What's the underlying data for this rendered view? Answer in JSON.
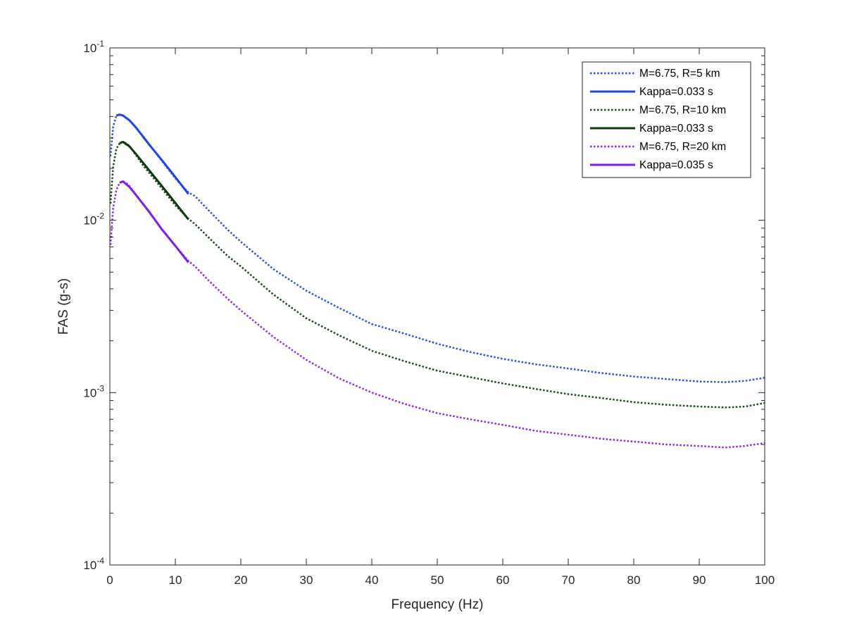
{
  "chart_data": {
    "type": "line",
    "title": "",
    "xlabel": "Frequency (Hz)",
    "ylabel": "FAS (g-s)",
    "xlim": [
      0,
      100
    ],
    "ylim": [
      0.0001,
      0.1
    ],
    "yscale": "log",
    "grid": false,
    "legend_position": "top-right",
    "x_ticks": [
      0,
      10,
      20,
      30,
      40,
      50,
      60,
      70,
      80,
      90,
      100
    ],
    "x_tick_labels": [
      "0",
      "10",
      "20",
      "30",
      "40",
      "50",
      "60",
      "70",
      "80",
      "90",
      "100"
    ],
    "y_ticks": [
      0.0001,
      0.001,
      0.01,
      0.1
    ],
    "y_tick_labels": [
      {
        "base": "10",
        "exp": "-4"
      },
      {
        "base": "10",
        "exp": "-3"
      },
      {
        "base": "10",
        "exp": "-2"
      },
      {
        "base": "10",
        "exp": "-1"
      }
    ],
    "series": [
      {
        "name": "M=6.75, R=5 km",
        "style": "dotted",
        "color": "#2d4fdc",
        "x": [
          0.1,
          0.5,
          1,
          1.5,
          2,
          3,
          5,
          8,
          10,
          12,
          13,
          15,
          18,
          20,
          25,
          30,
          35,
          40,
          45,
          50,
          55,
          60,
          65,
          70,
          75,
          80,
          85,
          90,
          94,
          97,
          100
        ],
        "y": [
          0.0235,
          0.035,
          0.0405,
          0.041,
          0.0405,
          0.038,
          0.031,
          0.022,
          0.0175,
          0.0145,
          0.0138,
          0.0115,
          0.0088,
          0.0075,
          0.0052,
          0.0039,
          0.0031,
          0.0025,
          0.0022,
          0.00192,
          0.00172,
          0.00157,
          0.00146,
          0.00138,
          0.0013,
          0.00124,
          0.0012,
          0.00116,
          0.00115,
          0.00117,
          0.00122
        ]
      },
      {
        "name": "Kappa=0.033 s",
        "style": "solid",
        "color": "#1f44e6",
        "x": [
          1,
          1.5,
          2,
          3,
          4,
          6,
          8,
          10,
          12
        ],
        "y": [
          0.0405,
          0.041,
          0.0405,
          0.038,
          0.0345,
          0.0275,
          0.0222,
          0.0178,
          0.0142
        ]
      },
      {
        "name": "M=6.75, R=10 km",
        "style": "dotted",
        "color": "#1a4a1a",
        "x": [
          0.1,
          0.5,
          1,
          1.5,
          2,
          2.5,
          3,
          5,
          8,
          10,
          12,
          13,
          15,
          18,
          20,
          25,
          30,
          35,
          40,
          45,
          50,
          55,
          60,
          65,
          70,
          75,
          80,
          85,
          90,
          94,
          97,
          100
        ],
        "y": [
          0.0125,
          0.0205,
          0.026,
          0.028,
          0.0285,
          0.028,
          0.027,
          0.021,
          0.0152,
          0.0122,
          0.0102,
          0.0095,
          0.008,
          0.0062,
          0.0054,
          0.0037,
          0.0027,
          0.00215,
          0.00175,
          0.00152,
          0.00134,
          0.00123,
          0.00113,
          0.00105,
          0.00098,
          0.00093,
          0.00088,
          0.00085,
          0.00083,
          0.00082,
          0.00083,
          0.00087
        ]
      },
      {
        "name": "Kappa=0.033 s",
        "style": "solid",
        "color": "#0d3a0d",
        "x": [
          1.5,
          2,
          3,
          4,
          6,
          8,
          10,
          12
        ],
        "y": [
          0.028,
          0.0285,
          0.0268,
          0.0242,
          0.0195,
          0.0157,
          0.0126,
          0.0101
        ]
      },
      {
        "name": "M=6.75, R=20 km",
        "style": "dotted",
        "color": "#8a2be2",
        "x": [
          0.1,
          0.5,
          1,
          1.5,
          2,
          2.5,
          3,
          5,
          8,
          10,
          12,
          13,
          15,
          18,
          20,
          25,
          30,
          35,
          40,
          45,
          50,
          55,
          60,
          65,
          70,
          75,
          80,
          85,
          90,
          94,
          97,
          100
        ],
        "y": [
          0.0072,
          0.0118,
          0.015,
          0.0165,
          0.0168,
          0.0165,
          0.0158,
          0.0125,
          0.0088,
          0.0071,
          0.0058,
          0.0054,
          0.0045,
          0.0035,
          0.003,
          0.0021,
          0.00155,
          0.00121,
          0.001,
          0.00086,
          0.00076,
          0.0007,
          0.00065,
          0.0006,
          0.00057,
          0.00054,
          0.00052,
          0.0005,
          0.00049,
          0.00048,
          0.00049,
          0.00051
        ]
      },
      {
        "name": "Kappa=0.035 s",
        "style": "solid",
        "color": "#7b1fe8",
        "x": [
          1.5,
          2,
          3,
          4,
          6,
          8,
          10,
          12
        ],
        "y": [
          0.0165,
          0.0168,
          0.0156,
          0.014,
          0.0112,
          0.0088,
          0.0071,
          0.0057
        ]
      }
    ]
  }
}
